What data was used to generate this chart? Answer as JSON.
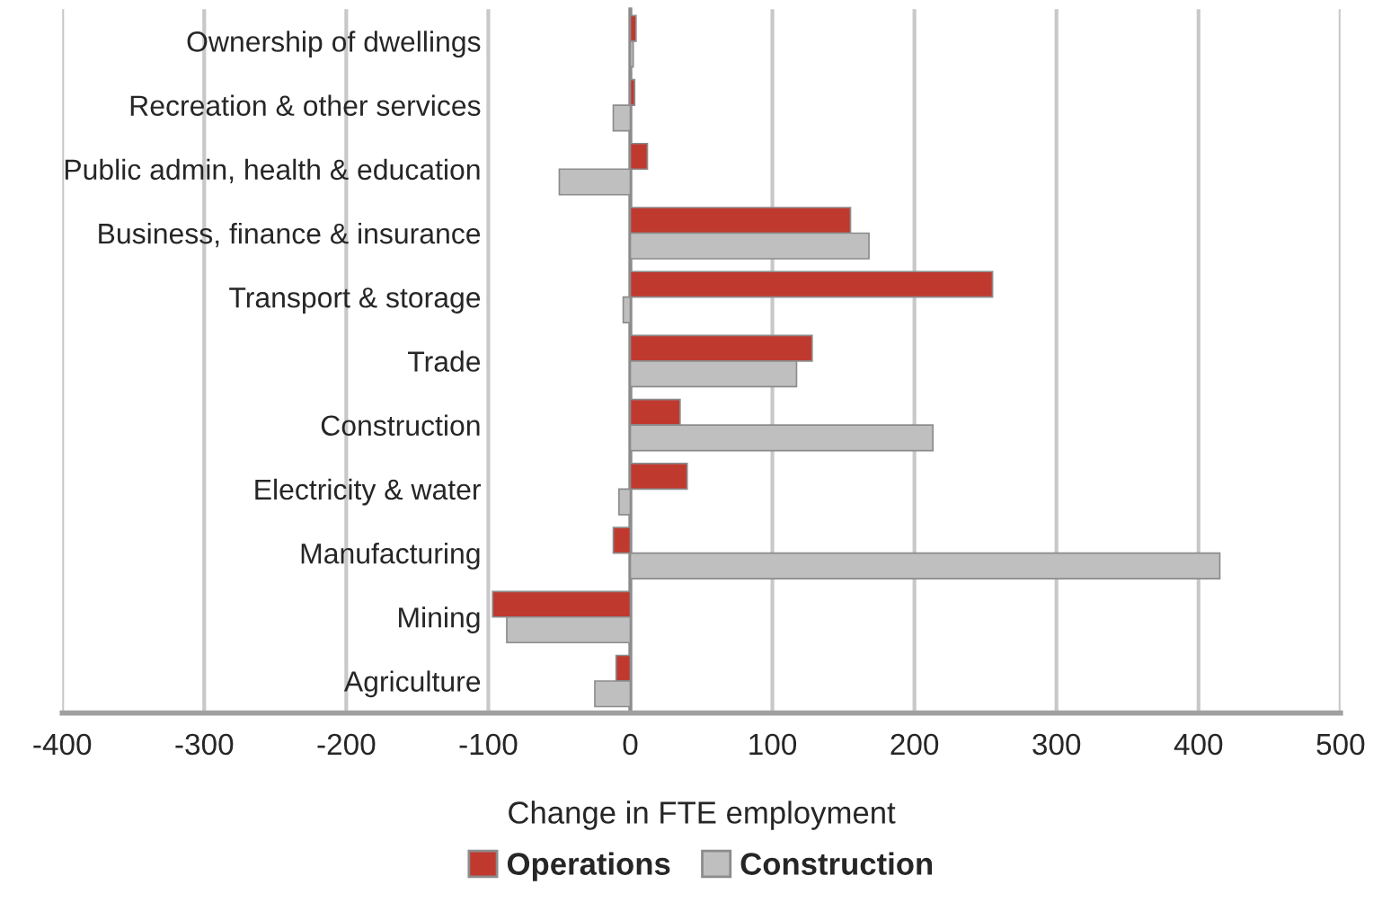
{
  "chart_data": {
    "type": "bar",
    "orientation": "horizontal",
    "xlabel": "Change in FTE employment",
    "categories": [
      "Ownership of dwellings",
      "Recreation & other services",
      "Public admin, health & education",
      "Business, finance & insurance",
      "Transport & storage",
      "Trade",
      "Construction",
      "Electricity & water",
      "Manufacturing",
      "Mining",
      "Agriculture"
    ],
    "series": [
      {
        "name": "Operations",
        "color": "#c0392f",
        "values": [
          4,
          3,
          12,
          155,
          255,
          128,
          35,
          40,
          -12,
          -97,
          -10
        ]
      },
      {
        "name": "Construction",
        "color": "#bfbfbf",
        "values": [
          2,
          -12,
          -50,
          168,
          -5,
          117,
          213,
          -8,
          415,
          -87,
          -25
        ]
      }
    ],
    "xlim": [
      -400,
      500
    ],
    "xticks": [
      -400,
      -300,
      -200,
      -100,
      0,
      100,
      200,
      300,
      400,
      500
    ],
    "grid": "x",
    "legend": "bottom"
  }
}
